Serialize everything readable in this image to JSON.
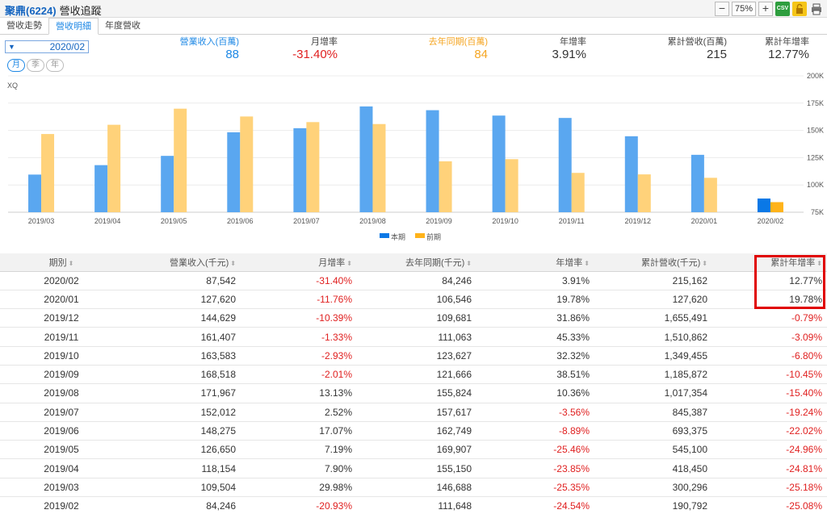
{
  "header": {
    "stock": "聚鼎(6224)",
    "name": "營收追蹤",
    "zoom": "75%",
    "zoom_out_label": "−",
    "zoom_in_label": "+",
    "csv_label": "CSV"
  },
  "tabs": [
    {
      "label": "營收走勢",
      "active": false
    },
    {
      "label": "營收明細",
      "active": true
    },
    {
      "label": "年度營收",
      "active": false
    }
  ],
  "controls": {
    "period": "2020/02",
    "frequency": [
      {
        "label": "月",
        "active": true
      },
      {
        "label": "季",
        "active": false
      },
      {
        "label": "年",
        "active": false
      }
    ]
  },
  "summary": {
    "revenue": {
      "label": "營業收入(百萬)",
      "value": "88",
      "color": "#1e88e5"
    },
    "mom": {
      "label": "月增率",
      "value": "-31.40%",
      "color": "#e02020"
    },
    "prev_year": {
      "label": "去年同期(百萬)",
      "value": "84",
      "color": "#f5a623"
    },
    "yoy": {
      "label": "年增率",
      "value": "3.91%",
      "color": "#333333"
    },
    "cum": {
      "label": "累計營收(百萬)",
      "value": "215",
      "color": "#333333"
    },
    "cum_yoy": {
      "label": "累計年增率",
      "value": "12.77%",
      "color": "#333333"
    }
  },
  "chart_data": {
    "type": "bar",
    "watermark": "XQ",
    "categories": [
      "2019/03",
      "2019/04",
      "2019/05",
      "2019/06",
      "2019/07",
      "2019/08",
      "2019/09",
      "2019/10",
      "2019/11",
      "2019/12",
      "2020/01",
      "2020/02"
    ],
    "series": [
      {
        "name": "本期",
        "color": "#5aa7f0",
        "values": [
          109504,
          118154,
          126650,
          148275,
          152012,
          171967,
          168518,
          163583,
          161407,
          144629,
          127620,
          87542
        ]
      },
      {
        "name": "前期",
        "color": "#ffd27a",
        "values": [
          146688,
          155150,
          169907,
          162749,
          157617,
          155824,
          121666,
          123627,
          111063,
          109681,
          106546,
          84246
        ]
      }
    ],
    "highlight_color": "#0a78e6",
    "highlight_color_prev": "#ffb31a",
    "ylim": [
      75000,
      200000
    ],
    "yticks": [
      "75K",
      "100K",
      "125K",
      "150K",
      "175K",
      "200K"
    ],
    "legend": "bottom-center",
    "grid": true
  },
  "table": {
    "headers": [
      "期別",
      "營業收入(千元)",
      "月增率",
      "去年同期(千元)",
      "年增率",
      "累計營收(千元)",
      "累計年增率"
    ],
    "rows": [
      [
        "2020/02",
        "87,542",
        "-31.40%",
        "84,246",
        "3.91%",
        "215,162",
        "12.77%"
      ],
      [
        "2020/01",
        "127,620",
        "-11.76%",
        "106,546",
        "19.78%",
        "127,620",
        "19.78%"
      ],
      [
        "2019/12",
        "144,629",
        "-10.39%",
        "109,681",
        "31.86%",
        "1,655,491",
        "-0.79%"
      ],
      [
        "2019/11",
        "161,407",
        "-1.33%",
        "111,063",
        "45.33%",
        "1,510,862",
        "-3.09%"
      ],
      [
        "2019/10",
        "163,583",
        "-2.93%",
        "123,627",
        "32.32%",
        "1,349,455",
        "-6.80%"
      ],
      [
        "2019/09",
        "168,518",
        "-2.01%",
        "121,666",
        "38.51%",
        "1,185,872",
        "-10.45%"
      ],
      [
        "2019/08",
        "171,967",
        "13.13%",
        "155,824",
        "10.36%",
        "1,017,354",
        "-15.40%"
      ],
      [
        "2019/07",
        "152,012",
        "2.52%",
        "157,617",
        "-3.56%",
        "845,387",
        "-19.24%"
      ],
      [
        "2019/06",
        "148,275",
        "17.07%",
        "162,749",
        "-8.89%",
        "693,375",
        "-22.02%"
      ],
      [
        "2019/05",
        "126,650",
        "7.19%",
        "169,907",
        "-25.46%",
        "545,100",
        "-24.96%"
      ],
      [
        "2019/04",
        "118,154",
        "7.90%",
        "155,150",
        "-23.85%",
        "418,450",
        "-24.81%"
      ],
      [
        "2019/03",
        "109,504",
        "29.98%",
        "146,688",
        "-25.35%",
        "300,296",
        "-25.18%"
      ],
      [
        "2019/02",
        "84,246",
        "-20.93%",
        "111,648",
        "-24.54%",
        "190,792",
        "-25.08%"
      ]
    ]
  }
}
